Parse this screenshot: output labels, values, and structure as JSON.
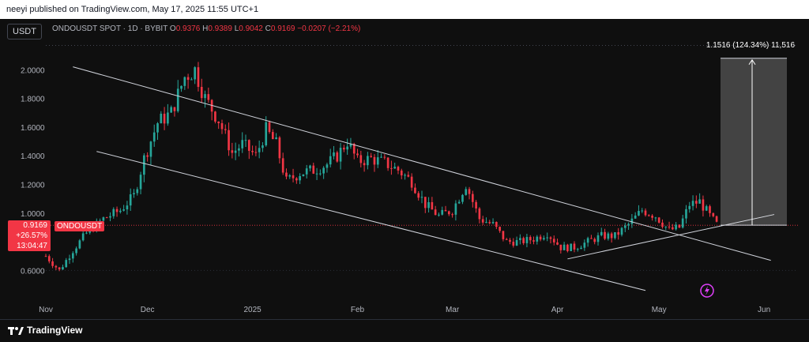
{
  "header": {
    "publisher": "neeyi published on TradingView.com, May 17, 2025 11:55 UTC+1"
  },
  "toolbar": {
    "currency": "USDT"
  },
  "legend": {
    "symbol": "ONDOUSDT SPOT · 1D · BYBIT",
    "open_label": "O",
    "open": "0.9376",
    "high_label": "H",
    "high": "0.9389",
    "low_label": "L",
    "low": "0.9042",
    "close_label": "C",
    "close": "0.9169",
    "change": "−0.0207 (−2.21%)"
  },
  "price_label": {
    "price": "0.9169",
    "change_pct": "+26.57%",
    "countdown": "13:04:47",
    "symbol": "ONDOUSDT"
  },
  "projection": {
    "label": "1.1516 (124.34%) 11,516",
    "target_price": 2.08,
    "base_price": 0.915
  },
  "brand": {
    "name": "TradingView"
  },
  "colors": {
    "up": "#26a69a",
    "down": "#f23645",
    "grid": "#1e222d",
    "line": "#d1d4dc",
    "accent": "#e040fb"
  },
  "chart_data": {
    "type": "candlestick",
    "title": "",
    "y_ticks": [
      "2.0000",
      "1.8000",
      "1.6000",
      "1.4000",
      "1.2000",
      "1.0000",
      "0.6000"
    ],
    "y_tick_values": [
      2.0,
      1.8,
      1.6,
      1.4,
      1.2,
      1.0,
      0.6
    ],
    "ylim": [
      0.42,
      2.2
    ],
    "x_ticks": [
      "Nov",
      "Dec",
      "2025",
      "Feb",
      "Mar",
      "Apr",
      "May",
      "Jun"
    ],
    "x_tick_days": [
      0,
      30,
      61,
      92,
      120,
      151,
      181,
      212
    ],
    "x_range_days": [
      0,
      222
    ],
    "date_start": "2024-11-01",
    "keypoints_close": [
      [
        0,
        0.7
      ],
      [
        4,
        0.6
      ],
      [
        8,
        0.74
      ],
      [
        12,
        0.86
      ],
      [
        17,
        0.96
      ],
      [
        22,
        1.02
      ],
      [
        26,
        1.12
      ],
      [
        29,
        1.38
      ],
      [
        33,
        1.63
      ],
      [
        37,
        1.7
      ],
      [
        41,
        1.95
      ],
      [
        44,
        2.0
      ],
      [
        47,
        1.8
      ],
      [
        51,
        1.65
      ],
      [
        55,
        1.42
      ],
      [
        58,
        1.48
      ],
      [
        62,
        1.4
      ],
      [
        65,
        1.58
      ],
      [
        68,
        1.48
      ],
      [
        71,
        1.22
      ],
      [
        75,
        1.28
      ],
      [
        79,
        1.3
      ],
      [
        83,
        1.34
      ],
      [
        86,
        1.4
      ],
      [
        89,
        1.5
      ],
      [
        92,
        1.36
      ],
      [
        96,
        1.38
      ],
      [
        100,
        1.35
      ],
      [
        104,
        1.3
      ],
      [
        108,
        1.22
      ],
      [
        112,
        1.06
      ],
      [
        116,
        0.98
      ],
      [
        120,
        1.02
      ],
      [
        124,
        1.2
      ],
      [
        128,
        0.96
      ],
      [
        132,
        0.92
      ],
      [
        136,
        0.8
      ],
      [
        140,
        0.8
      ],
      [
        144,
        0.82
      ],
      [
        148,
        0.86
      ],
      [
        152,
        0.76
      ],
      [
        156,
        0.76
      ],
      [
        160,
        0.8
      ],
      [
        164,
        0.84
      ],
      [
        168,
        0.84
      ],
      [
        172,
        0.92
      ],
      [
        176,
        1.02
      ],
      [
        180,
        0.98
      ],
      [
        184,
        0.88
      ],
      [
        187,
        0.9
      ],
      [
        190,
        1.06
      ],
      [
        193,
        1.08
      ],
      [
        196,
        0.98
      ],
      [
        198,
        0.92
      ]
    ],
    "trendlines": [
      {
        "name": "upper-channel",
        "p1": [
          8,
          2.02
        ],
        "p2": [
          214,
          0.67
        ]
      },
      {
        "name": "lower-channel",
        "p1": [
          15,
          1.43
        ],
        "p2": [
          177,
          0.46
        ]
      },
      {
        "name": "rising-support",
        "p1": [
          154,
          0.68
        ],
        "p2": [
          215,
          0.99
        ]
      }
    ],
    "current_price_line": 0.915,
    "top_dotted_line": 2.17
  }
}
